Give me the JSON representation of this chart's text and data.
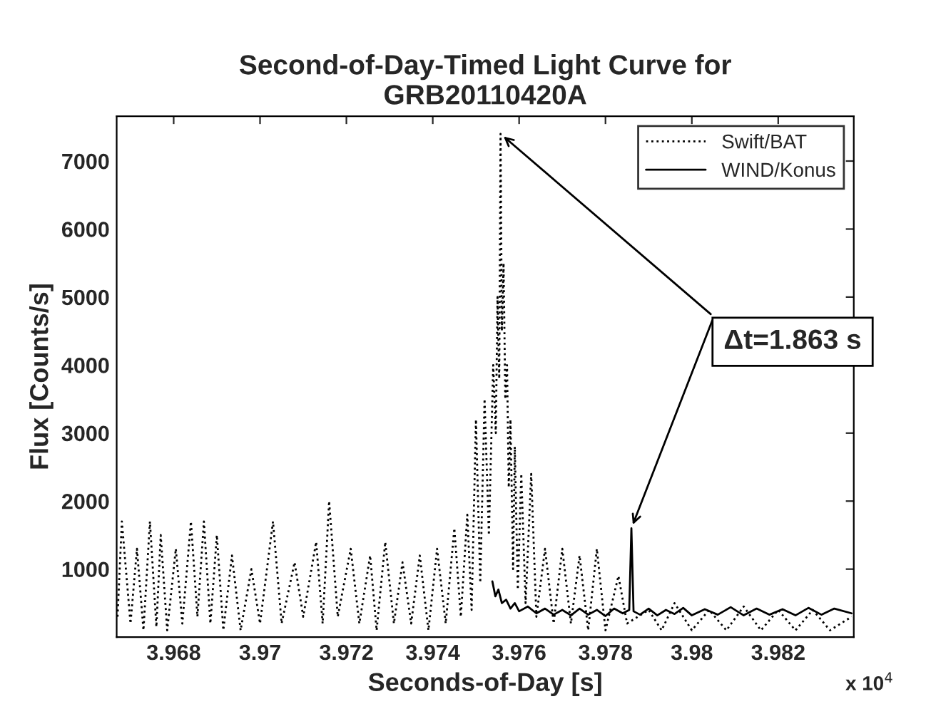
{
  "chart_data": {
    "type": "line",
    "title": "Second-of-Day-Timed Light Curve for\nGRB20110420A",
    "xlabel": "Seconds-of-Day [s]",
    "ylabel": "Flux [Counts/s]",
    "xlim": [
      3.96668,
      3.98375
    ],
    "ylim": [
      0,
      7660
    ],
    "xticks": [
      3.968,
      3.97,
      3.972,
      3.974,
      3.976,
      3.978,
      3.98,
      3.982
    ],
    "yticks": [
      1000,
      2000,
      3000,
      4000,
      5000,
      6000,
      7000
    ],
    "legend": "top right",
    "grid": false,
    "annotations": [
      {
        "text": "Δt=1.863 s",
        "x": 3.97557,
        "y": 7400
      },
      "x 10$^{4}$"
    ],
    "series": [
      {
        "name": "Swift/BAT",
        "color": "#000000",
        "line_style": "dotted",
        "x": [
          3.9667,
          3.9668,
          3.967,
          3.96715,
          3.9673,
          3.96745,
          3.9676,
          3.9677,
          3.96785,
          3.96805,
          3.9682,
          3.9684,
          3.96855,
          3.9687,
          3.96885,
          3.969,
          3.96915,
          3.96935,
          3.96955,
          3.9698,
          3.97,
          3.9703,
          3.9705,
          3.9708,
          3.971,
          3.9713,
          3.97145,
          3.9716,
          3.9718,
          3.9721,
          3.9723,
          3.97255,
          3.9727,
          3.9729,
          3.9731,
          3.9733,
          3.9735,
          3.9737,
          3.9739,
          3.9741,
          3.9743,
          3.9745,
          3.97465,
          3.9748,
          3.9749,
          3.975,
          3.9751,
          3.9752,
          3.9753,
          3.9754,
          3.97546,
          3.9755,
          3.97554,
          3.97557,
          3.9756,
          3.97564,
          3.97568,
          3.97572,
          3.97576,
          3.9758,
          3.97586,
          3.9759,
          3.97597,
          3.97605,
          3.97615,
          3.97628,
          3.9764,
          3.9766,
          3.9768,
          3.977,
          3.9772,
          3.9774,
          3.9776,
          3.9778,
          3.978,
          3.9783,
          3.9785,
          3.979,
          3.9793,
          3.9796,
          3.98,
          3.9804,
          3.9808,
          3.9812,
          3.9816,
          3.982,
          3.9824,
          3.9828,
          3.9832,
          3.9837
        ],
        "values": [
          300,
          1700,
          200,
          1300,
          100,
          1700,
          150,
          1500,
          100,
          1300,
          200,
          1700,
          300,
          1700,
          200,
          1500,
          100,
          1200,
          100,
          1000,
          200,
          1700,
          200,
          1100,
          300,
          1400,
          200,
          2000,
          300,
          1300,
          200,
          1200,
          100,
          1400,
          200,
          1100,
          200,
          1200,
          100,
          1300,
          200,
          1600,
          300,
          1800,
          400,
          3200,
          800,
          3500,
          1500,
          4000,
          3000,
          5000,
          3800,
          7400,
          4500,
          5500,
          3500,
          4000,
          2200,
          3200,
          1000,
          2800,
          700,
          2400,
          500,
          2400,
          300,
          1300,
          200,
          1300,
          200,
          1200,
          100,
          1300,
          100,
          900,
          200,
          400,
          100,
          500,
          100,
          400,
          100,
          450,
          100,
          400,
          100,
          400,
          100,
          300
        ]
      },
      {
        "name": "WIND/Konus",
        "color": "#000000",
        "line_style": "solid",
        "x": [
          3.97538,
          3.97545,
          3.97552,
          3.9756,
          3.9757,
          3.9758,
          3.9759,
          3.976,
          3.9762,
          3.9764,
          3.9766,
          3.9768,
          3.977,
          3.9772,
          3.9774,
          3.9776,
          3.9778,
          3.978,
          3.9782,
          3.9784,
          3.97855,
          3.9786,
          3.97865,
          3.9788,
          3.979,
          3.9792,
          3.9794,
          3.9796,
          3.9798,
          3.98,
          3.9803,
          3.9806,
          3.9809,
          3.9812,
          3.9815,
          3.9818,
          3.9821,
          3.9824,
          3.9827,
          3.983,
          3.9833,
          3.9837
        ],
        "values": [
          820,
          600,
          700,
          500,
          550,
          420,
          500,
          380,
          450,
          350,
          420,
          330,
          400,
          320,
          420,
          330,
          400,
          310,
          420,
          350,
          400,
          1600,
          380,
          330,
          420,
          320,
          400,
          340,
          430,
          320,
          410,
          330,
          440,
          320,
          420,
          330,
          410,
          320,
          430,
          330,
          420,
          350
        ]
      }
    ]
  }
}
